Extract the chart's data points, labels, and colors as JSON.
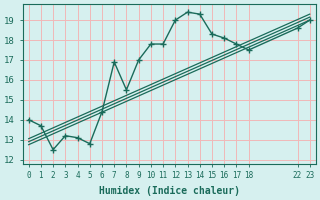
{
  "bg_color": "#d6f0ef",
  "grid_color": "#f0b8b8",
  "line_color": "#1a6b5a",
  "xlabel": "Humidex (Indice chaleur)",
  "xlim": [
    -0.5,
    23.5
  ],
  "ylim": [
    11.8,
    19.8
  ],
  "yticks": [
    12,
    13,
    14,
    15,
    16,
    17,
    18,
    19
  ],
  "xtick_positions": [
    0,
    1,
    2,
    3,
    4,
    5,
    6,
    7,
    8,
    9,
    10,
    11,
    12,
    13,
    14,
    15,
    16,
    17,
    18,
    22,
    23
  ],
  "xtick_labels": [
    "0",
    "1",
    "2",
    "3",
    "4",
    "5",
    "6",
    "7",
    "8",
    "9",
    "10",
    "11",
    "12",
    "13",
    "14",
    "15",
    "16",
    "17",
    "18",
    "22",
    "23"
  ],
  "wavy_x": [
    0,
    1,
    2,
    3,
    4,
    5,
    6,
    7,
    8,
    9,
    10,
    11,
    12,
    13,
    14,
    15,
    16,
    17,
    18,
    22,
    23
  ],
  "wavy_y": [
    14.0,
    13.7,
    12.5,
    13.2,
    13.1,
    12.8,
    14.4,
    16.9,
    15.5,
    17.0,
    17.8,
    17.8,
    19.0,
    19.4,
    19.3,
    18.3,
    18.1,
    17.8,
    17.5,
    18.6,
    19.0
  ],
  "diag_lines": [
    {
      "x": [
        0,
        23
      ],
      "y": [
        12.75,
        19.0
      ]
    },
    {
      "x": [
        0,
        23
      ],
      "y": [
        12.9,
        19.15
      ]
    },
    {
      "x": [
        0,
        23
      ],
      "y": [
        13.05,
        19.3
      ]
    }
  ]
}
